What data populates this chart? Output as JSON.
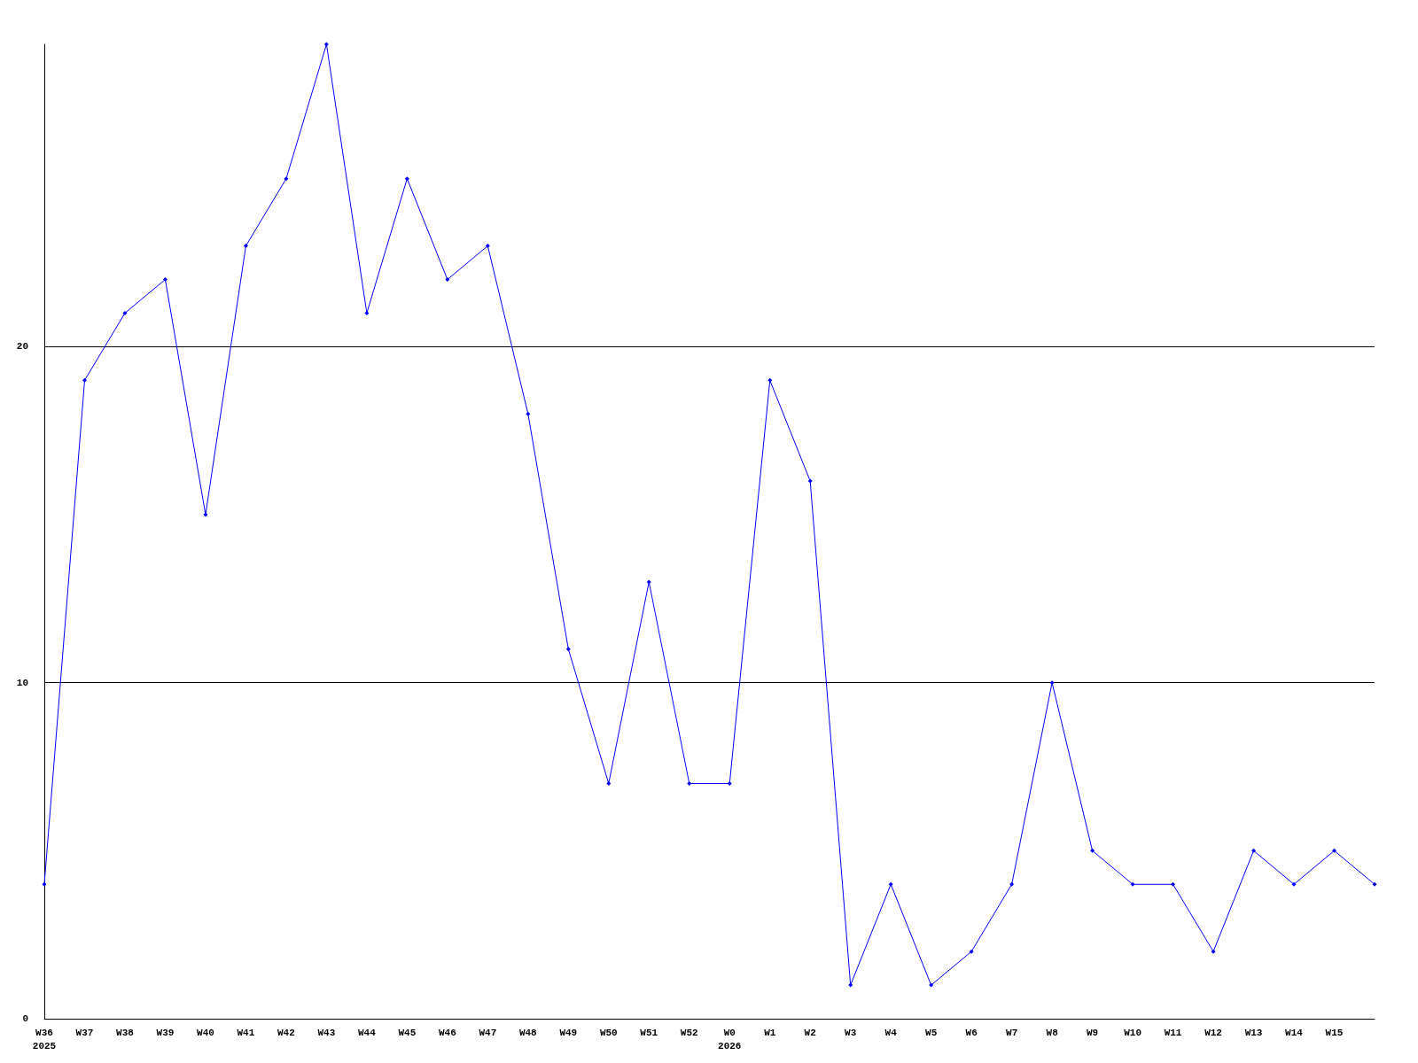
{
  "chart_data": {
    "type": "line",
    "categories": [
      "W36\n2025",
      "W37",
      "W38",
      "W39",
      "W40",
      "W41",
      "W42",
      "W43",
      "W44",
      "W45",
      "W46",
      "W47",
      "W48",
      "W49",
      "W50",
      "W51",
      "W52",
      "W0\n2026",
      "W1",
      "W2",
      "W3",
      "W4",
      "W5",
      "W6",
      "W7",
      "W8",
      "W9",
      "W10",
      "W11",
      "W12",
      "W13",
      "W14",
      "W15",
      null
    ],
    "series": [
      {
        "color": "#0000ff",
        "values": [
          4,
          19,
          21,
          22,
          15,
          23,
          25,
          29,
          21,
          25,
          22,
          23,
          18,
          11,
          7,
          13,
          7,
          7,
          19,
          16,
          1,
          4,
          1,
          2,
          4,
          10,
          5,
          4,
          4,
          2,
          5,
          4,
          5,
          4
        ]
      }
    ],
    "ylim": [
      0,
      29
    ],
    "yticks": [
      0,
      10,
      20
    ],
    "grid": "y",
    "marker": "diamond",
    "line_style": "solid"
  }
}
